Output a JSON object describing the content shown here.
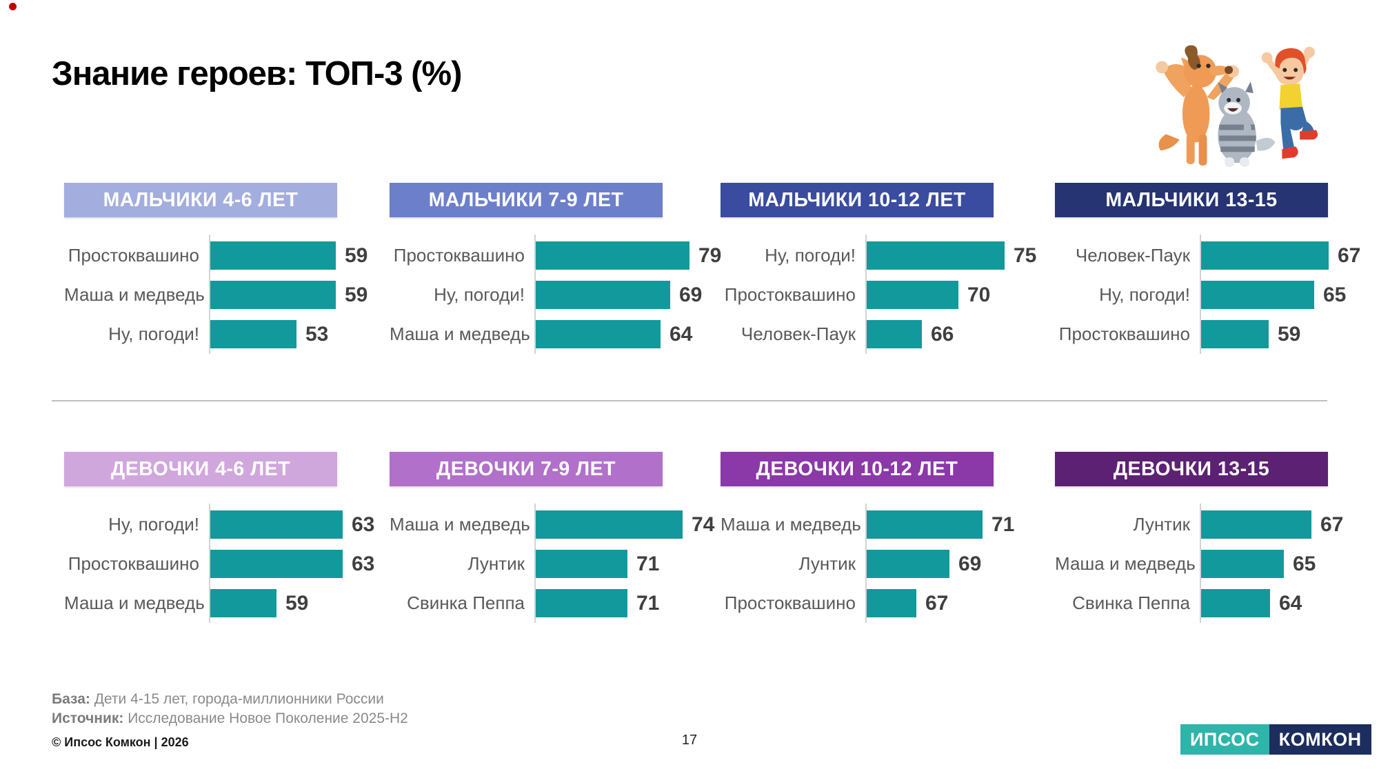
{
  "slide": {
    "title": "Знание героев: ТОП-3 (%)",
    "page_number": "17"
  },
  "footer": {
    "base_label": "База:",
    "base_text": " Дети 4-15 лет, города-миллионники России",
    "source_label": "Источник:",
    "source_text": " Исследование Новое Поколение 2025-H2",
    "copyright": "© Ипсос Комкон | 2026"
  },
  "logo": {
    "ipsos": "ИПСОС",
    "comcon": "КОМКОН",
    "ipsos_bg": "#2EB5A9",
    "comcon_bg": "#1C2D5E"
  },
  "illustration": {
    "name": "prostokvashino-characters",
    "description": "cartoon dog, striped cat and jumping boy"
  },
  "colors": {
    "bar": "#12999C",
    "category_label": "#595959",
    "value_label": "#3F3F3F",
    "axis": "#D2D2D2",
    "divider": "#ABABAB"
  },
  "chart_data": [
    {
      "id": "boys-4-6",
      "type": "bar",
      "orientation": "horizontal",
      "title": "МАЛЬЧИКИ 4-6 ЛЕТ",
      "header_bg": "#A3AEDE",
      "categories": [
        "Простоквашино",
        "Маша и медведь",
        "Ну, погоди!"
      ],
      "values": [
        59,
        59,
        53
      ],
      "xlim": [
        40,
        65
      ]
    },
    {
      "id": "boys-7-9",
      "type": "bar",
      "orientation": "horizontal",
      "title": "МАЛЬЧИКИ 7-9 ЛЕТ",
      "header_bg": "#6C7FCB",
      "categories": [
        "Простоквашино",
        "Ну, погоди!",
        "Маша и медведь"
      ],
      "values": [
        79,
        69,
        64
      ],
      "xlim": [
        0,
        85
      ]
    },
    {
      "id": "boys-10-12",
      "type": "bar",
      "orientation": "horizontal",
      "title": "МАЛЬЧИКИ 10-12 ЛЕТ",
      "header_bg": "#3A4C9F",
      "categories": [
        "Ну, погоди!",
        "Простоквашино",
        "Человек-Паук"
      ],
      "values": [
        75,
        70,
        66
      ],
      "xlim": [
        60,
        78
      ]
    },
    {
      "id": "boys-13-15",
      "type": "bar",
      "orientation": "horizontal",
      "title": "МАЛЬЧИКИ 13-15",
      "header_bg": "#263474",
      "categories": [
        "Человек-Паук",
        "Ну, погоди!",
        "Простоквашино"
      ],
      "values": [
        67,
        65,
        59
      ],
      "xlim": [
        50,
        72
      ]
    },
    {
      "id": "girls-4-6",
      "type": "bar",
      "orientation": "horizontal",
      "title": "ДЕВОЧКИ 4-6 ЛЕТ",
      "header_bg": "#D0A7DD",
      "categories": [
        "Ну, погоди!",
        "Простоквашино",
        "Маша и медведь"
      ],
      "values": [
        63,
        63,
        59
      ],
      "xlim": [
        55,
        65
      ]
    },
    {
      "id": "girls-7-9",
      "type": "bar",
      "orientation": "horizontal",
      "title": "ДЕВОЧКИ 7-9 ЛЕТ",
      "header_bg": "#B170CA",
      "categories": [
        "Маша и медведь",
        "Лунтик",
        "Свинка Пеппа"
      ],
      "values": [
        74,
        71,
        71
      ],
      "xlim": [
        66,
        75
      ]
    },
    {
      "id": "girls-10-12",
      "type": "bar",
      "orientation": "horizontal",
      "title": "ДЕВОЧКИ 10-12 ЛЕТ",
      "header_bg": "#8B38A9",
      "categories": [
        "Маша и медведь",
        "Лунтик",
        "Простоквашино"
      ],
      "values": [
        71,
        69,
        67
      ],
      "xlim": [
        64,
        74
      ]
    },
    {
      "id": "girls-13-15",
      "type": "bar",
      "orientation": "horizontal",
      "title": "ДЕВОЧКИ 13-15",
      "header_bg": "#5C2173",
      "categories": [
        "Лунтик",
        "Маша и медведь",
        "Свинка Пеппа"
      ],
      "values": [
        67,
        65,
        64
      ],
      "xlim": [
        59,
        71
      ]
    }
  ]
}
